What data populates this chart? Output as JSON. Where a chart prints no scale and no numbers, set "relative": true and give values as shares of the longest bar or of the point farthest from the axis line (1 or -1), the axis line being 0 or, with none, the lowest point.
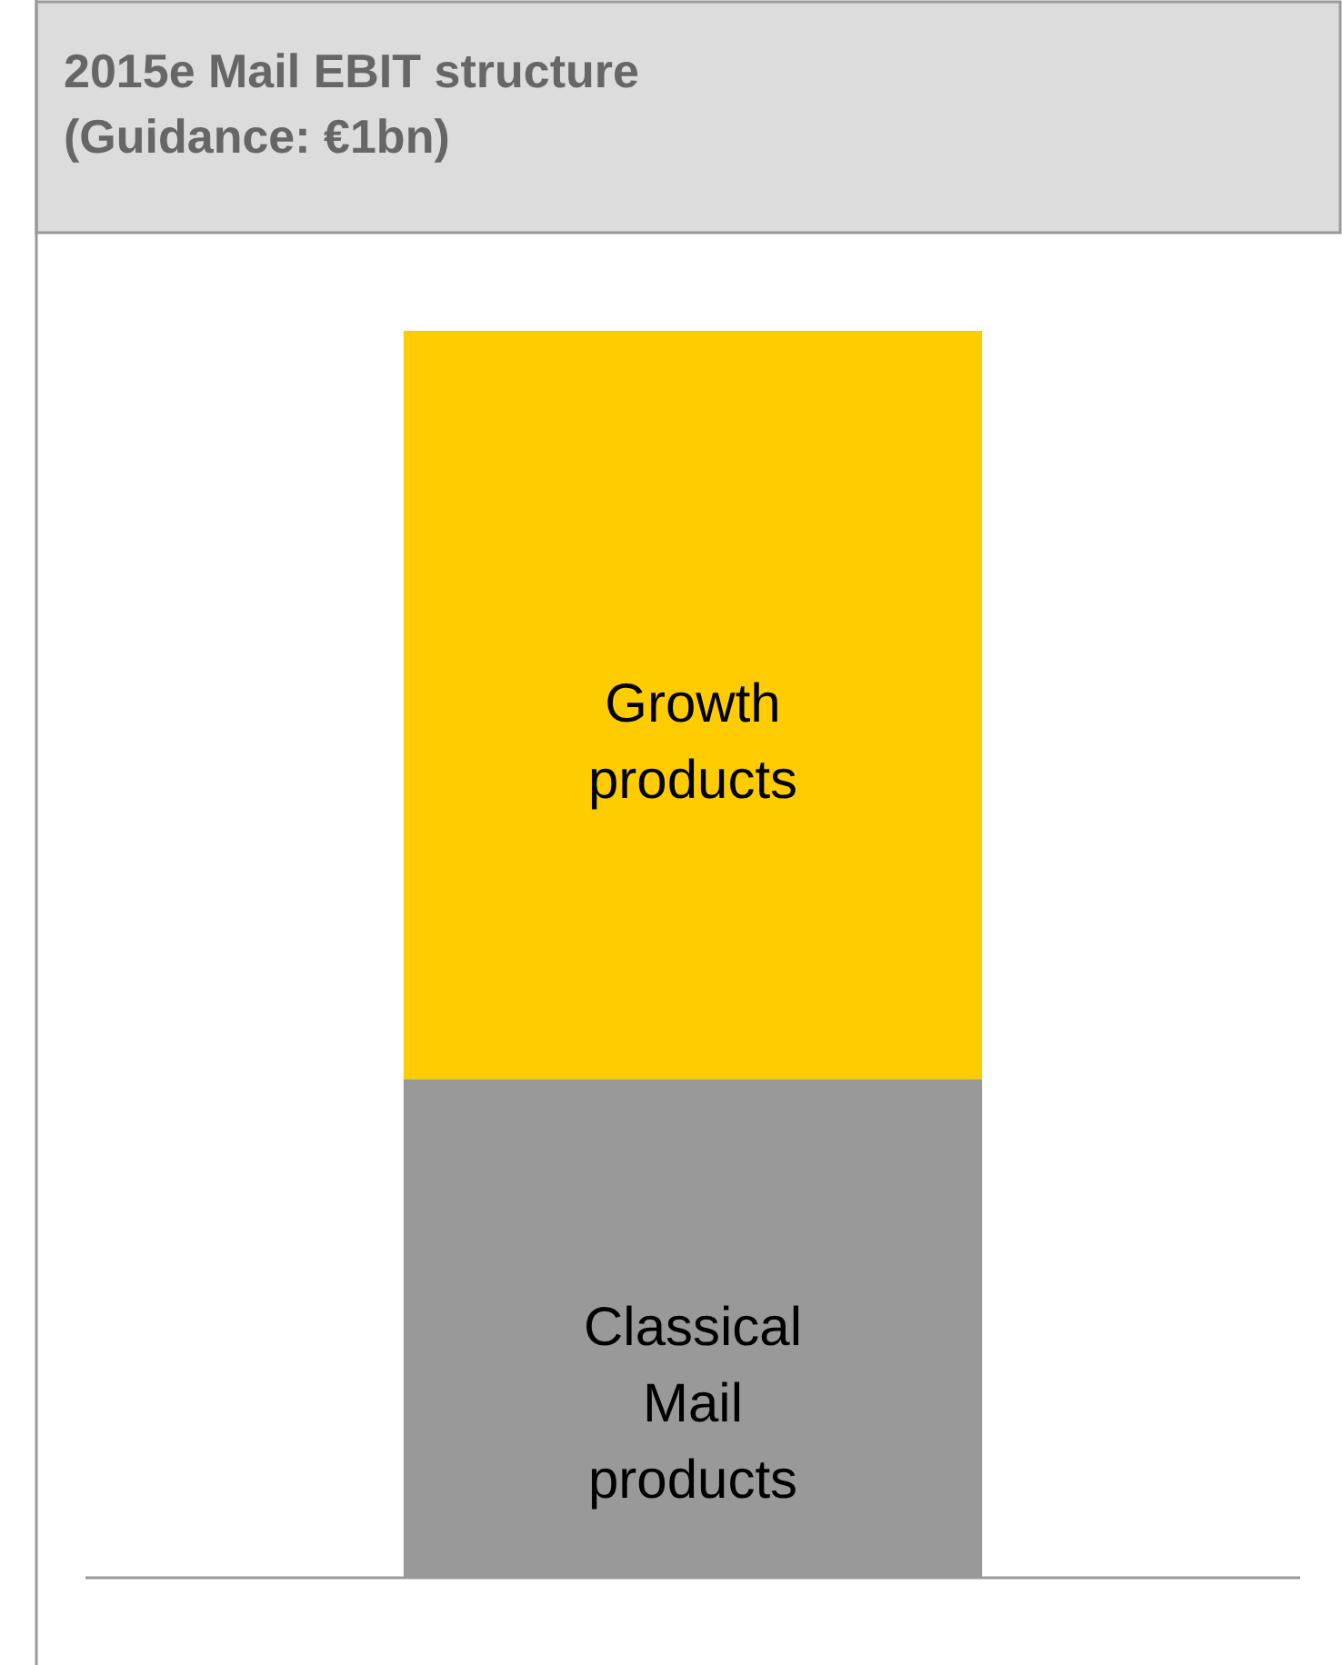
{
  "chart_data": {
    "type": "bar",
    "title": "2015e Mail EBIT structure\n(Guidance: €1bn)",
    "categories": [
      null
    ],
    "stacked": true,
    "relative": true,
    "series": [
      {
        "name": "Classical\nMail\nproducts",
        "color": "#999999",
        "values": [
          0.4
        ]
      },
      {
        "name": "Growth\nproducts",
        "color": "#fecc00",
        "values": [
          0.6
        ]
      }
    ]
  }
}
